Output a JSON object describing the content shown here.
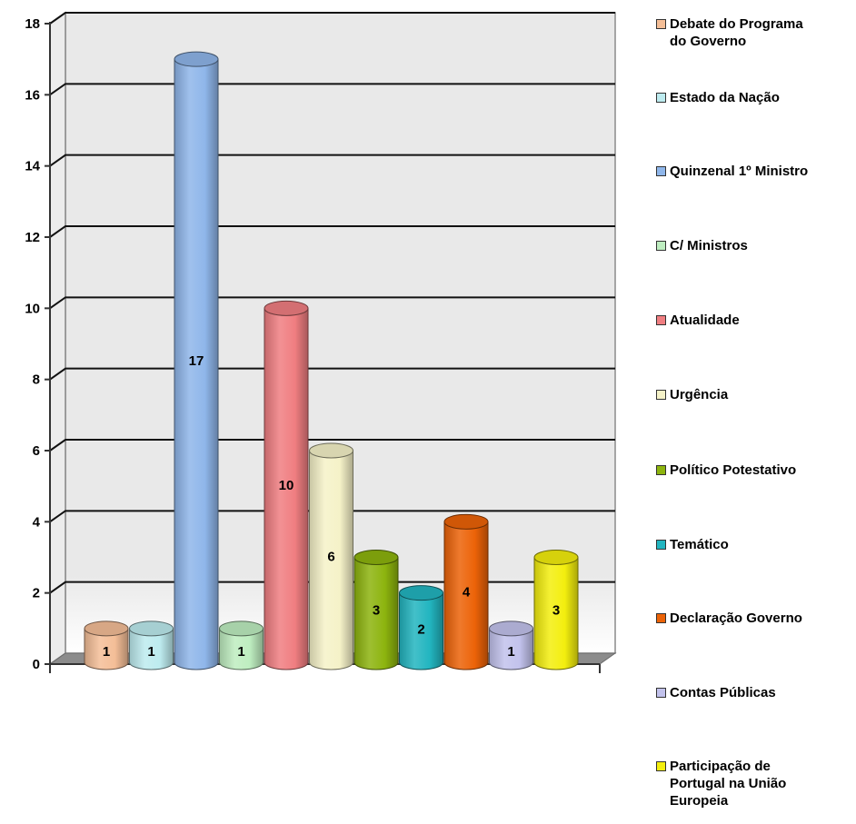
{
  "chart_data": {
    "type": "bar",
    "title": "",
    "xlabel": "",
    "ylabel": "",
    "ylim": [
      0,
      18
    ],
    "yticks": [
      "0",
      "2",
      "4",
      "6",
      "8",
      "10",
      "12",
      "14",
      "16",
      "18"
    ],
    "grid": true,
    "legend_position": "right",
    "series": [
      {
        "name": "Debate do Programa do Governo",
        "value": 1,
        "color": "#F4BE97"
      },
      {
        "name": "Estado da Nação",
        "value": 1,
        "color": "#BDEBEF"
      },
      {
        "name": "Quinzenal 1º Ministro",
        "value": 17,
        "color": "#8FB6EA"
      },
      {
        "name": "C/ Ministros",
        "value": 1,
        "color": "#BEEDC0"
      },
      {
        "name": "Atualidade",
        "value": 10,
        "color": "#F07E81"
      },
      {
        "name": "Urgência",
        "value": 6,
        "color": "#F5F2C8"
      },
      {
        "name": "Político Potestativo",
        "value": 3,
        "color": "#8DB40E"
      },
      {
        "name": "Temático",
        "value": 2,
        "color": "#22B5C0"
      },
      {
        "name": "Declaração Governo",
        "value": 4,
        "color": "#EC6308"
      },
      {
        "name": "Contas Públicas",
        "value": 1,
        "color": "#C2C2EC"
      },
      {
        "name": "Participação de Portugal na União Europeia",
        "value": 3,
        "color": "#F3EE0E"
      }
    ]
  }
}
